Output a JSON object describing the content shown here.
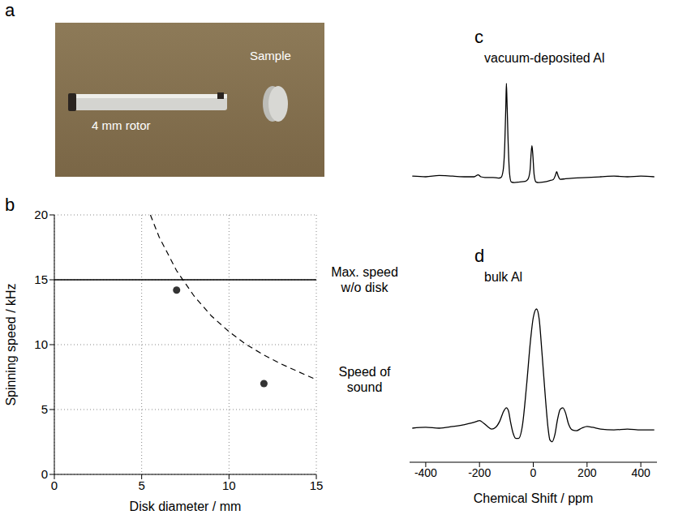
{
  "chart_data": [
    {
      "panel": "b",
      "type": "line",
      "xlabel": "Disk diameter / mm",
      "ylabel": "Spinning speed / kHz",
      "xlim": [
        0,
        15
      ],
      "xticks": [
        0,
        5,
        10,
        15
      ],
      "ylim": [
        0,
        20
      ],
      "yticks": [
        0,
        5,
        10,
        15,
        20
      ],
      "grid": true,
      "series": [
        {
          "name": "Max. speed w/o disk",
          "type": "line",
          "color": "#000000",
          "line_style": "solid",
          "x": [
            0,
            15
          ],
          "values": [
            15,
            15
          ]
        },
        {
          "name": "Speed of sound",
          "type": "line",
          "color": "#000000",
          "line_style": "dashed",
          "x": [
            5.5,
            6,
            7,
            8,
            9,
            10,
            11,
            12,
            13,
            14,
            15
          ],
          "values": [
            20.0,
            18.3,
            15.7,
            13.75,
            12.2,
            11.0,
            10.0,
            9.2,
            8.5,
            7.9,
            7.3
          ]
        },
        {
          "type": "scatter",
          "color": "#333333",
          "marker": "circle",
          "x": [
            7,
            12
          ],
          "values": [
            14.2,
            7.0
          ]
        }
      ]
    },
    {
      "panel": "c",
      "type": "line",
      "title": "vacuum-deposited Al",
      "xlim": [
        -460,
        460
      ],
      "ylim": [
        0,
        100
      ],
      "tick_labels": false,
      "series": [
        {
          "color": "#000000",
          "x": [
            -450,
            -400,
            -350,
            -300,
            -250,
            -220,
            -205,
            -195,
            -180,
            -150,
            -130,
            -120,
            -112,
            -106,
            -102,
            -100,
            -98,
            -94,
            -88,
            -82,
            -70,
            -50,
            -30,
            -20,
            -12,
            -8,
            -5,
            -2,
            3,
            10,
            20,
            40,
            60,
            75,
            82,
            87,
            92,
            100,
            120,
            150,
            200,
            250,
            300,
            350,
            400,
            450
          ],
          "values": [
            20.5,
            20,
            21,
            20.5,
            20,
            20,
            21.5,
            20,
            19.5,
            19.5,
            19,
            19.5,
            25,
            45,
            75,
            92,
            80,
            50,
            22,
            16,
            15.5,
            16,
            16.5,
            18,
            25,
            38,
            44,
            38,
            22,
            16,
            15.5,
            16,
            17,
            18,
            21,
            24,
            21,
            18,
            18.5,
            19,
            19.5,
            20,
            20.5,
            20,
            20.5,
            20
          ]
        }
      ]
    },
    {
      "panel": "d",
      "type": "line",
      "title": "bulk Al",
      "xlabel": "Chemical Shift / ppm",
      "xlim": [
        -460,
        460
      ],
      "xticks": [
        -400,
        -200,
        0,
        200,
        400
      ],
      "ylim": [
        0,
        100
      ],
      "tick_labels": "x",
      "series": [
        {
          "color": "#000000",
          "x": [
            -450,
            -400,
            -350,
            -300,
            -260,
            -230,
            -210,
            -200,
            -185,
            -170,
            -155,
            -140,
            -125,
            -110,
            -100,
            -92,
            -85,
            -75,
            -65,
            -55,
            -40,
            -25,
            -10,
            0,
            12,
            22,
            32,
            45,
            55,
            62,
            70,
            80,
            90,
            100,
            110,
            120,
            130,
            145,
            160,
            180,
            200,
            220,
            250,
            300,
            350,
            400,
            450
          ],
          "values": [
            20,
            20.5,
            20,
            21,
            22,
            23,
            24,
            24.5,
            23,
            21,
            19.5,
            20.5,
            24,
            30,
            32,
            30,
            24,
            17,
            14,
            14,
            22,
            45,
            72,
            85,
            90,
            84,
            65,
            38,
            20,
            13,
            12,
            16,
            25,
            31,
            32,
            29,
            23,
            19,
            18.5,
            20,
            21,
            20.5,
            19.5,
            19,
            19.5,
            19,
            19
          ]
        }
      ]
    }
  ],
  "photo": {
    "panel": "a",
    "labels": [
      "4 mm rotor",
      "Sample"
    ]
  }
}
